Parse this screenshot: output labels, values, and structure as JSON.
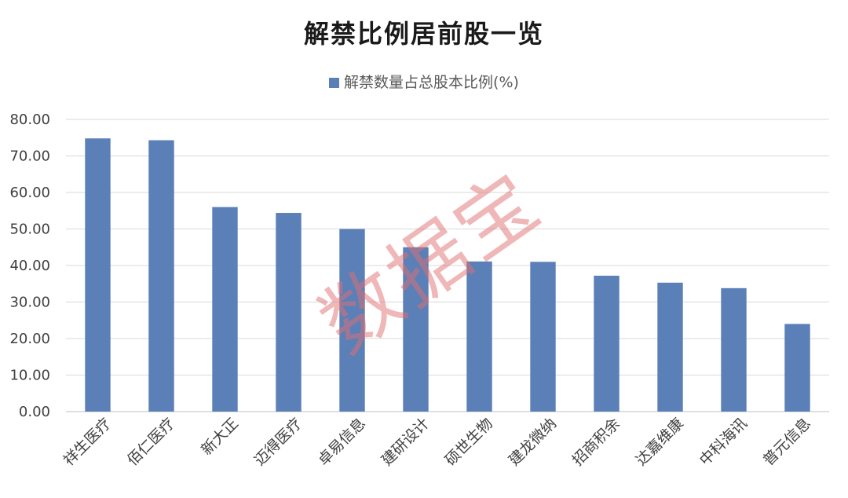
{
  "chart_data": {
    "type": "bar",
    "title": "解禁比例居前股一览",
    "series": [
      {
        "name": "解禁数量占总股本比例(%)",
        "color": "#5b7fb7",
        "values": [
          74.8,
          74.3,
          56.0,
          54.4,
          50.0,
          45.0,
          41.1,
          41.0,
          37.2,
          35.3,
          33.8,
          24.0
        ]
      }
    ],
    "categories": [
      "祥生医疗",
      "佰仁医疗",
      "新大正",
      "迈得医疗",
      "卓易信息",
      "建研设计",
      "硕世生物",
      "建龙微纳",
      "招商积余",
      "达嘉维康",
      "中科海讯",
      "普元信息"
    ],
    "ylim": [
      0,
      80
    ],
    "yticks": [
      "0.00",
      "10.00",
      "20.00",
      "30.00",
      "40.00",
      "50.00",
      "60.00",
      "70.00",
      "80.00"
    ],
    "grid": true,
    "legend_position": "top-center",
    "gridline_color": "#d9d9d9"
  },
  "watermark": {
    "text": "数据宝",
    "color": "#e07070"
  }
}
